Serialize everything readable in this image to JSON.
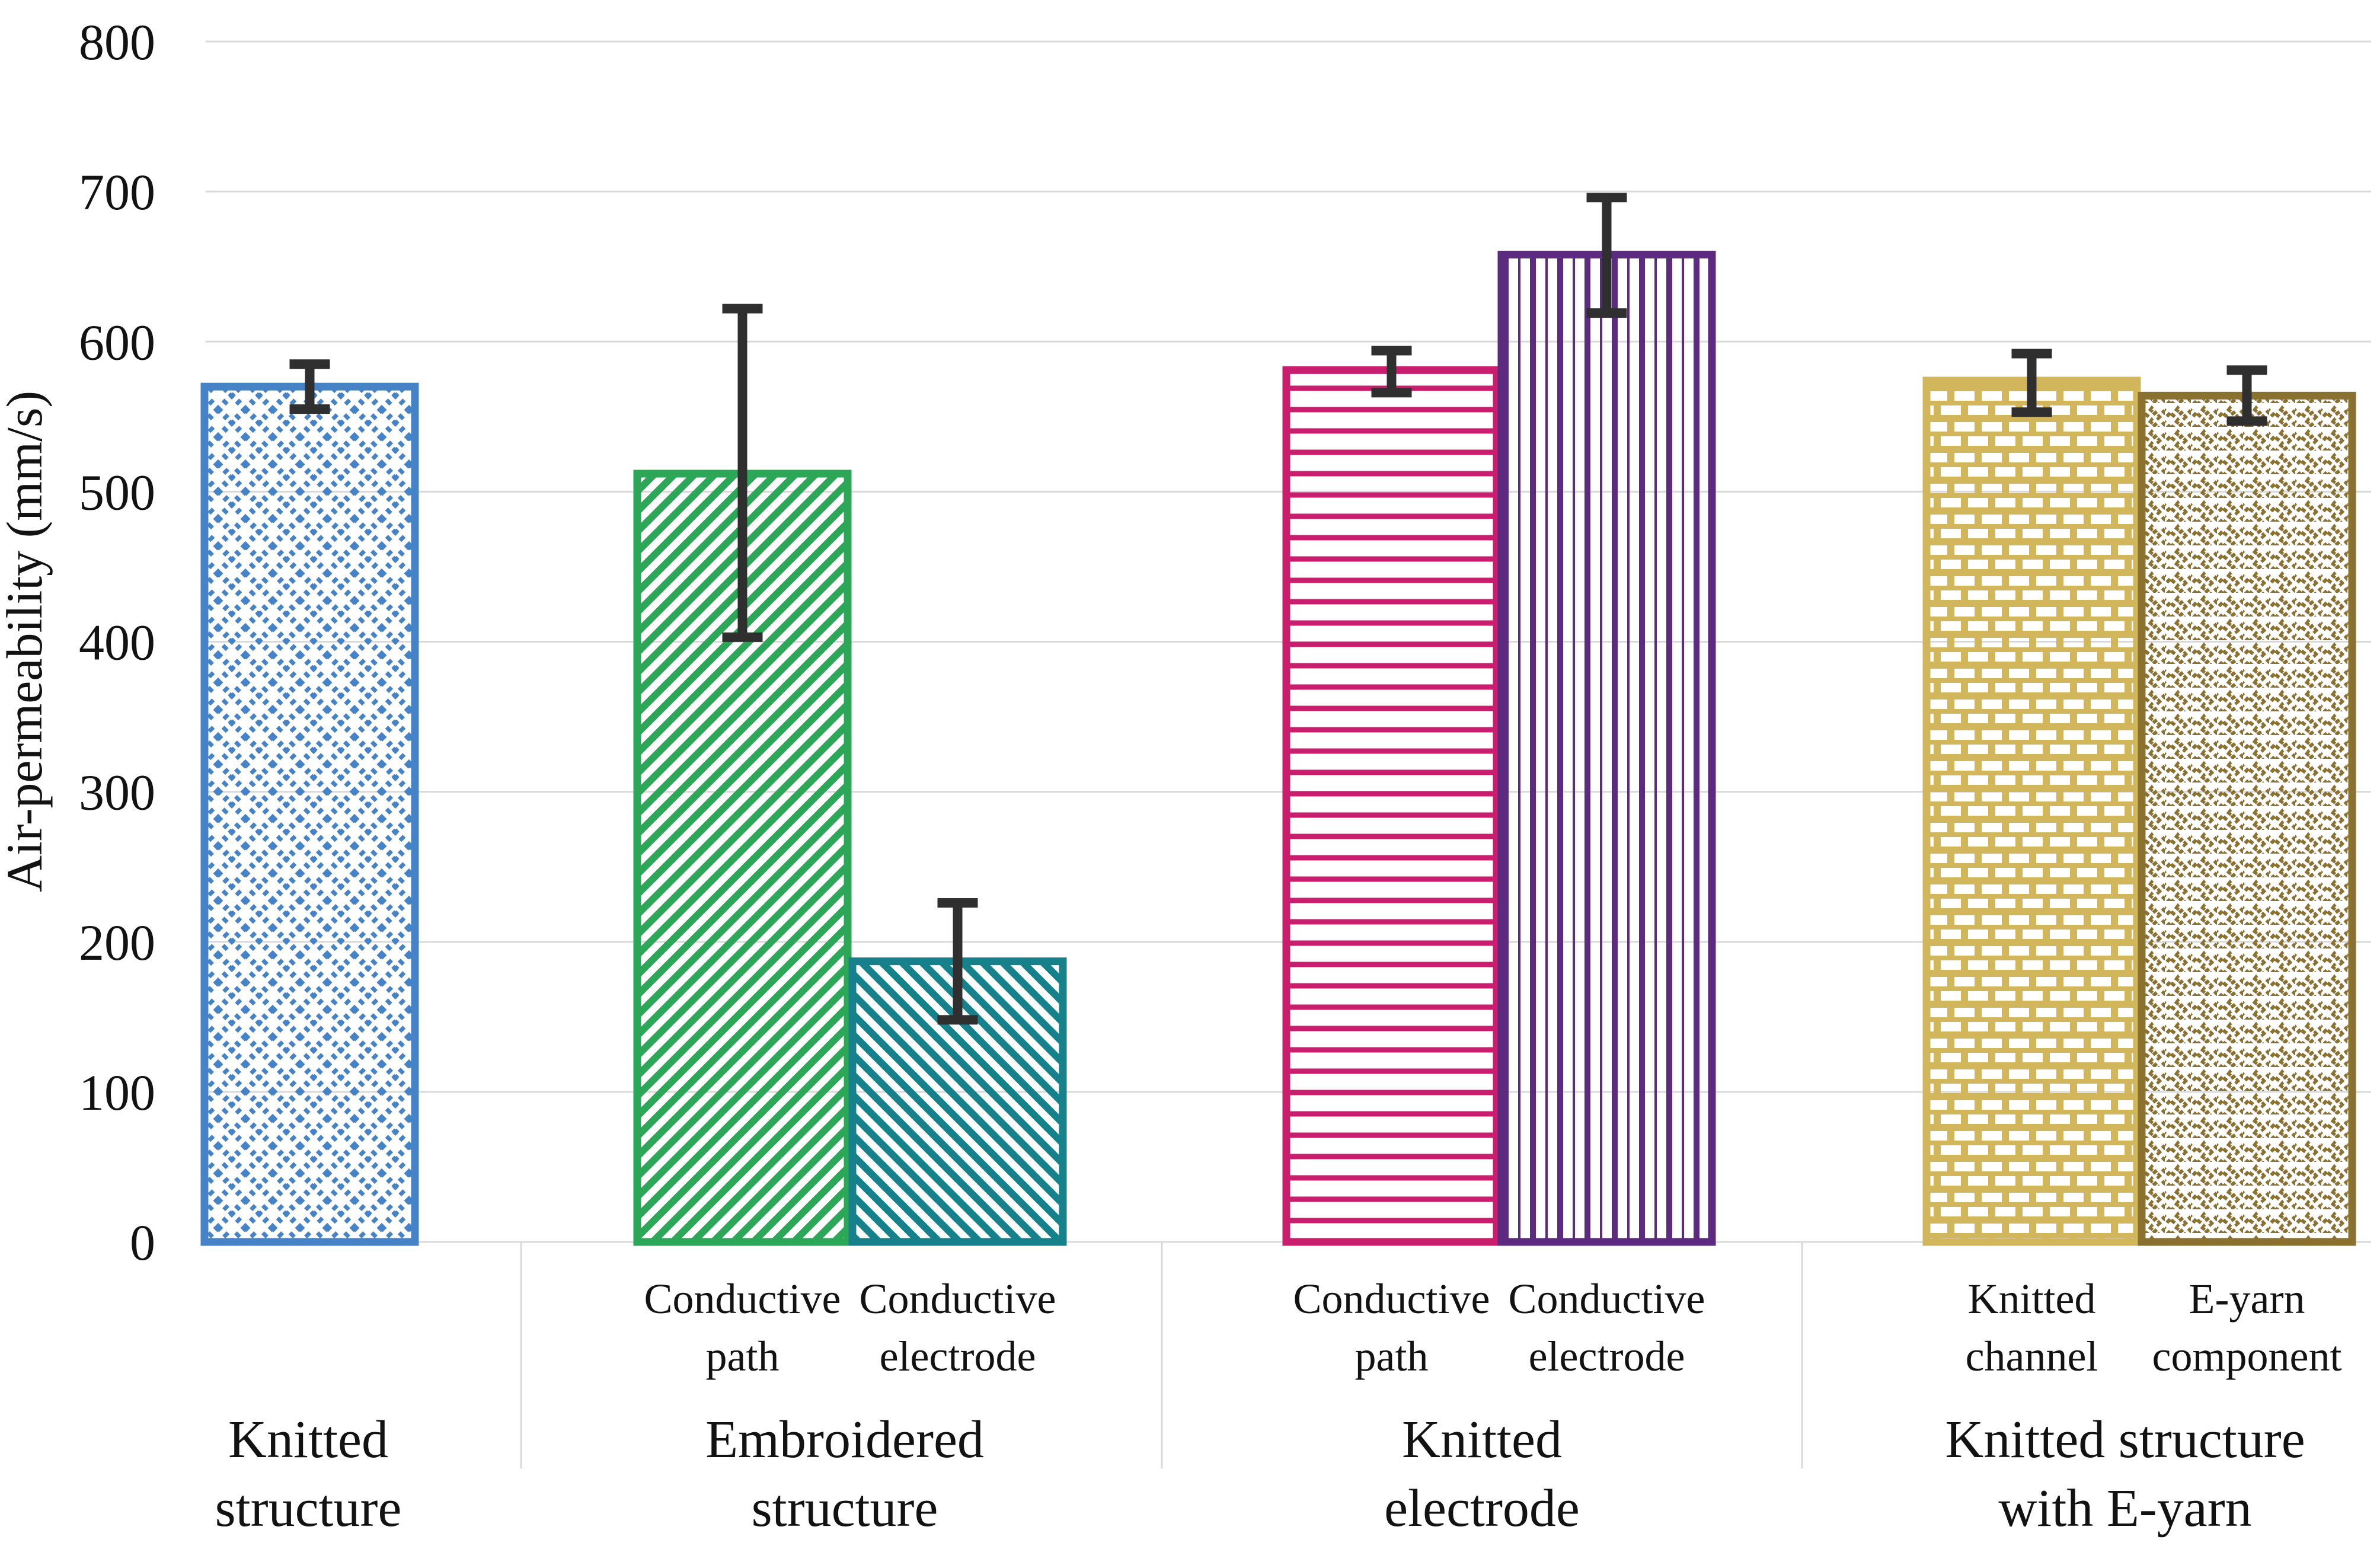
{
  "figure_background": "#ffffff",
  "chart_data": {
    "type": "bar",
    "title": "",
    "xlabel": "",
    "ylabel": "Air-permeability (mm/s)",
    "ylim": [
      0,
      800
    ],
    "yticks": [
      0,
      100,
      200,
      300,
      400,
      500,
      600,
      700,
      800
    ],
    "grid": "horizontal light-gray gridlines at every 100, category divider ticks below axis",
    "legend": "none",
    "error_bar_color": "#2f2f2f",
    "gridline_color": "#d9d9d9",
    "groups": [
      {
        "label": "Knitted structure",
        "label_lines": [
          "Knitted",
          "structure"
        ],
        "bars": [
          {
            "sublabel": "",
            "sublabel_lines": [],
            "value": 570,
            "err_low": 555,
            "err_high": 585,
            "color": "#4583c6",
            "pattern": "dotted-crosshatch"
          }
        ]
      },
      {
        "label": "Embroidered structure",
        "label_lines": [
          "Embroidered",
          "structure"
        ],
        "bars": [
          {
            "sublabel": "Conductive path",
            "sublabel_lines": [
              "Conductive",
              "path"
            ],
            "value": 512,
            "err_low": 403,
            "err_high": 622,
            "color": "#2ba757",
            "pattern": "diagonal-stripes-forward"
          },
          {
            "sublabel": "Conductive electrode",
            "sublabel_lines": [
              "Conductive",
              "electrode"
            ],
            "value": 187,
            "err_low": 148,
            "err_high": 226,
            "color": "#17818b",
            "pattern": "diagonal-stripes-back"
          }
        ]
      },
      {
        "label": "Knitted electrode",
        "label_lines": [
          "Knitted",
          "electrode"
        ],
        "bars": [
          {
            "sublabel": "Conductive path",
            "sublabel_lines": [
              "Conductive",
              "path"
            ],
            "value": 581,
            "err_low": 566,
            "err_high": 594,
            "color": "#c91d6e",
            "pattern": "horizontal-lines"
          },
          {
            "sublabel": "Conductive electrode",
            "sublabel_lines": [
              "Conductive",
              "electrode"
            ],
            "value": 658,
            "err_low": 619,
            "err_high": 696,
            "color": "#5c2b80",
            "pattern": "vertical-lines"
          }
        ]
      },
      {
        "label": "Knitted structure with E-yarn",
        "label_lines": [
          "Knitted structure",
          "with E-yarn"
        ],
        "bars": [
          {
            "sublabel": "Knitted channel",
            "sublabel_lines": [
              "Knitted",
              "channel"
            ],
            "value": 574,
            "err_low": 553,
            "err_high": 592,
            "color": "#d2b65c",
            "pattern": "brick"
          },
          {
            "sublabel": "E-yarn component",
            "sublabel_lines": [
              "E-yarn",
              "component"
            ],
            "value": 564,
            "err_low": 547,
            "err_high": 581,
            "color": "#8a7130",
            "pattern": "zigzag-dots"
          }
        ]
      }
    ]
  }
}
